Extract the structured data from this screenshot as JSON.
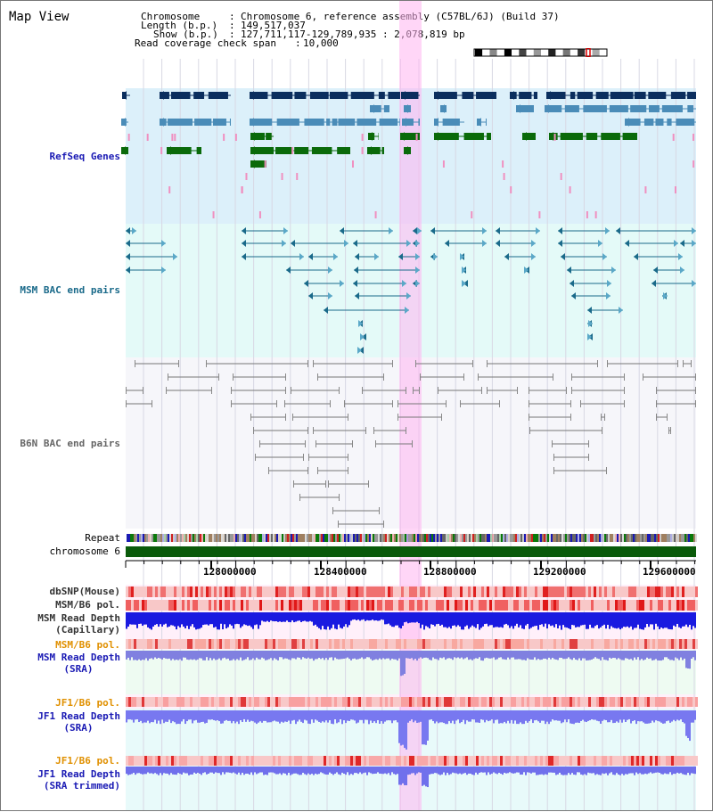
{
  "title": "Map View",
  "header": {
    "chromosome_label": "Chromosome",
    "chromosome_value": "Chromosome 6, reference assembly (C57BL/6J) (Build 37)",
    "length_label": "Length (b.p.)",
    "length_value": "149,517,037",
    "show_label": "Show (b.p.)",
    "show_value": "127,711,117-129,789,935 : 2,078,819 bp",
    "coverage_label": "Read coverage check span",
    "coverage_value": "10,000"
  },
  "tracks": {
    "refseq": "RefSeq Genes",
    "msm_bac": "MSM BAC end pairs",
    "b6n_bac": "B6N BAC end pairs",
    "repeat": "Repeat",
    "chromosome": "chromosome 6",
    "dbsnp": "dbSNP(Mouse)",
    "msm_b6_pol": "MSM/B6 pol.",
    "msm_depth_cap_1": "MSM Read Depth",
    "msm_depth_cap_2": "(Capillary)",
    "msm_b6_pol_sra": "MSM/B6 pol.",
    "msm_depth_sra_1": "MSM Read Depth",
    "msm_depth_sra_2": "(SRA)",
    "jf1_b6_pol": "JF1/B6 pol.",
    "jf1_depth_1": "JF1 Read Depth",
    "jf1_depth_2": "(SRA)",
    "jf1_b6_pol_trim": "JF1/B6 pol.",
    "jf1_trim_1": "JF1 Read Depth",
    "jf1_trim_2": "(SRA trimmed)"
  },
  "axis_ticks": [
    "128000000",
    "128400000",
    "128800000",
    "129200000",
    "129600000"
  ],
  "colors": {
    "refseq_bg": "#dcf0fa",
    "msm_bac_bg": "#e4faf8",
    "b6n_bg": "#f6f6fa",
    "highlight": "#ffb4f0",
    "gene_dark": "#0b2e5e",
    "gene_mid": "#4a8cb8",
    "gene_green": "#0a6a0a",
    "msm_line": "#1a6a8a",
    "b6n_line": "#777777",
    "chrom_bar": "#0a5a0a",
    "depth_blue": "#1a1ae0",
    "depth_lavender": "#7878f0"
  }
}
